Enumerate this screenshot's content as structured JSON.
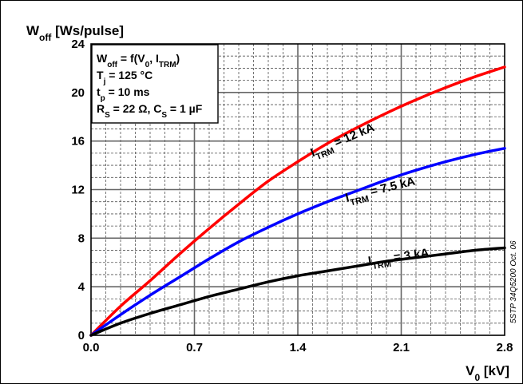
{
  "chart_data": {
    "type": "line",
    "ylabel": {
      "main": "W",
      "sub": "off",
      "rest": " [Ws/pulse]"
    },
    "xlabel": {
      "main": "V",
      "sub": "0",
      "rest": " [kV]"
    },
    "xlim": [
      0,
      2.8
    ],
    "ylim": [
      0,
      24
    ],
    "x_ticks": [
      "0.0",
      "0.7",
      "1.4",
      "2.1",
      "2.8"
    ],
    "y_ticks": [
      "0",
      "4",
      "8",
      "12",
      "16",
      "20",
      "24"
    ],
    "grid": true,
    "conditions": [
      {
        "main": "W",
        "sub": "off",
        "rest": " = f(V",
        "sub2": "0",
        "rest2": ", I",
        "sub3": "TRM",
        "rest3": ")"
      },
      {
        "main": "T",
        "sub": "j",
        "rest": " = 125 °C"
      },
      {
        "main": "t",
        "sub": "p",
        "rest": " = 10 ms"
      },
      {
        "main": "R",
        "sub": "S",
        "rest": " = 22 Ω, C",
        "sub2": "S",
        "rest2": " = 1 µF"
      }
    ],
    "series": [
      {
        "name": {
          "main": "I",
          "sub": "TRM",
          "rest": " = 12 kA"
        },
        "color": "#ff0000",
        "x": [
          0,
          0.2,
          0.4,
          0.6,
          0.8,
          1.0,
          1.2,
          1.4,
          1.6,
          1.8,
          2.0,
          2.2,
          2.4,
          2.6,
          2.8
        ],
        "y": [
          0,
          2.4,
          4.5,
          6.7,
          8.8,
          10.8,
          12.7,
          14.3,
          15.8,
          17.1,
          18.3,
          19.4,
          20.4,
          21.3,
          22.1
        ]
      },
      {
        "name": {
          "main": "I",
          "sub": "TRM",
          "rest": " = 7.5 kA"
        },
        "color": "#0000ff",
        "x": [
          0,
          0.2,
          0.4,
          0.6,
          0.8,
          1.0,
          1.2,
          1.4,
          1.6,
          1.8,
          2.0,
          2.2,
          2.4,
          2.6,
          2.8
        ],
        "y": [
          0,
          1.7,
          3.3,
          4.8,
          6.3,
          7.7,
          8.9,
          10.0,
          11.0,
          11.9,
          12.8,
          13.6,
          14.3,
          14.9,
          15.4
        ]
      },
      {
        "name": {
          "main": "I",
          "sub": "TRM",
          "rest": " = 3 kA"
        },
        "color": "#000000",
        "x": [
          0,
          0.2,
          0.4,
          0.6,
          0.8,
          1.0,
          1.2,
          1.4,
          1.6,
          1.8,
          2.0,
          2.2,
          2.4,
          2.6,
          2.8
        ],
        "y": [
          0,
          1.0,
          1.8,
          2.5,
          3.2,
          3.8,
          4.4,
          4.9,
          5.3,
          5.7,
          6.1,
          6.4,
          6.7,
          7.0,
          7.2
        ]
      }
    ],
    "doc_ref": "5STP 34Q5200 Oct. 06"
  }
}
